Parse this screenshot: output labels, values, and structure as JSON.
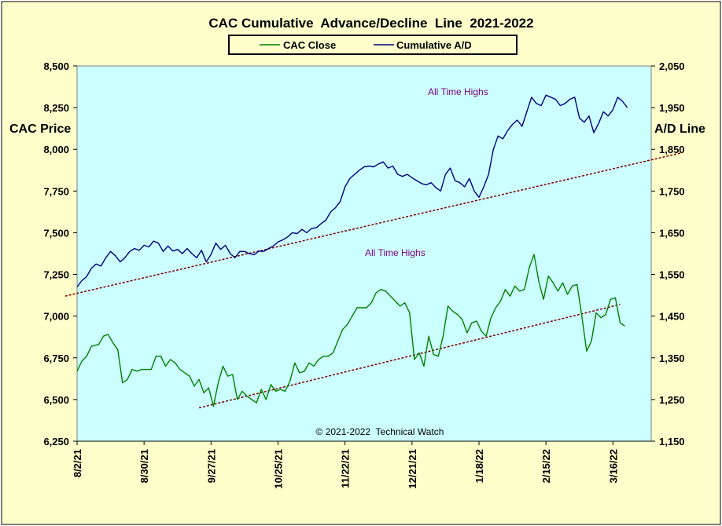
{
  "chart_data": {
    "type": "line",
    "title": "CAC Cumulative  Advance/Decline  Line  2021-2022",
    "ylabel_left": "CAC Price",
    "ylabel_right": "A/D Line",
    "credit": "© 2021-2022  Technical Watch",
    "annotations": [
      "All Time Highs",
      "All Time Highs"
    ],
    "legend_position": "top-center",
    "grid": false,
    "x_ticks": [
      "8/2/21",
      "8/30/21",
      "9/27/21",
      "10/25/21",
      "11/22/21",
      "12/21/21",
      "1/18/22",
      "2/15/22",
      "3/16/22"
    ],
    "y_left_ticks": [
      "6,250",
      "6,500",
      "6,750",
      "7,000",
      "7,250",
      "7,500",
      "7,750",
      "8,000",
      "8,250",
      "8,500"
    ],
    "y_right_ticks": [
      "1,150",
      "1,250",
      "1,350",
      "1,450",
      "1,550",
      "1,650",
      "1,750",
      "1,850",
      "1,950",
      "2,050"
    ],
    "ylim_left": [
      6250,
      8500
    ],
    "ylim_right": [
      1150,
      2050
    ],
    "x_range_days": [
      0,
      240
    ],
    "colors": {
      "cac": "#008000",
      "ad": "#000080",
      "trend": "#800000",
      "plot_bg": "#ccffff",
      "frame_bg": "#ffffcc"
    },
    "series": [
      {
        "name": "CAC Close",
        "axis": "left",
        "points": [
          [
            0,
            6670
          ],
          [
            2,
            6730
          ],
          [
            4,
            6760
          ],
          [
            6,
            6820
          ],
          [
            9,
            6830
          ],
          [
            11,
            6880
          ],
          [
            13,
            6890
          ],
          [
            15,
            6840
          ],
          [
            17,
            6800
          ],
          [
            19,
            6600
          ],
          [
            21,
            6620
          ],
          [
            23,
            6680
          ],
          [
            25,
            6670
          ],
          [
            27,
            6680
          ],
          [
            29,
            6680
          ],
          [
            31,
            6680
          ],
          [
            33,
            6760
          ],
          [
            35,
            6760
          ],
          [
            37,
            6700
          ],
          [
            39,
            6740
          ],
          [
            41,
            6720
          ],
          [
            43,
            6680
          ],
          [
            45,
            6660
          ],
          [
            47,
            6640
          ],
          [
            49,
            6580
          ],
          [
            51,
            6620
          ],
          [
            53,
            6540
          ],
          [
            55,
            6570
          ],
          [
            57,
            6460
          ],
          [
            59,
            6600
          ],
          [
            61,
            6700
          ],
          [
            63,
            6640
          ],
          [
            65,
            6650
          ],
          [
            67,
            6500
          ],
          [
            69,
            6550
          ],
          [
            71,
            6520
          ],
          [
            73,
            6500
          ],
          [
            75,
            6480
          ],
          [
            77,
            6560
          ],
          [
            79,
            6500
          ],
          [
            81,
            6590
          ],
          [
            83,
            6550
          ],
          [
            85,
            6560
          ],
          [
            87,
            6550
          ],
          [
            89,
            6610
          ],
          [
            91,
            6720
          ],
          [
            93,
            6660
          ],
          [
            95,
            6670
          ],
          [
            97,
            6720
          ],
          [
            99,
            6700
          ],
          [
            101,
            6740
          ],
          [
            103,
            6760
          ],
          [
            105,
            6760
          ],
          [
            107,
            6780
          ],
          [
            109,
            6850
          ],
          [
            111,
            6920
          ],
          [
            113,
            6950
          ],
          [
            115,
            7000
          ],
          [
            117,
            7050
          ],
          [
            119,
            7050
          ],
          [
            121,
            7050
          ],
          [
            123,
            7080
          ],
          [
            125,
            7140
          ],
          [
            127,
            7160
          ],
          [
            129,
            7150
          ],
          [
            131,
            7120
          ],
          [
            133,
            7090
          ],
          [
            135,
            7060
          ],
          [
            137,
            7080
          ],
          [
            139,
            7020
          ],
          [
            141,
            6740
          ],
          [
            143,
            6780
          ],
          [
            145,
            6700
          ],
          [
            147,
            6880
          ],
          [
            149,
            6770
          ],
          [
            151,
            6760
          ],
          [
            153,
            6880
          ],
          [
            155,
            7060
          ],
          [
            157,
            7030
          ],
          [
            159,
            7010
          ],
          [
            161,
            6980
          ],
          [
            163,
            6900
          ],
          [
            165,
            6960
          ],
          [
            167,
            6970
          ],
          [
            169,
            6910
          ],
          [
            171,
            6880
          ],
          [
            173,
            6990
          ],
          [
            175,
            7050
          ],
          [
            177,
            7090
          ],
          [
            179,
            7160
          ],
          [
            181,
            7120
          ],
          [
            183,
            7180
          ],
          [
            185,
            7150
          ],
          [
            187,
            7160
          ],
          [
            189,
            7290
          ],
          [
            191,
            7370
          ],
          [
            193,
            7210
          ],
          [
            195,
            7100
          ],
          [
            197,
            7240
          ],
          [
            199,
            7200
          ],
          [
            201,
            7150
          ],
          [
            203,
            7200
          ],
          [
            205,
            7130
          ],
          [
            207,
            7180
          ],
          [
            209,
            7190
          ],
          [
            211,
            7000
          ],
          [
            213,
            6790
          ],
          [
            215,
            6850
          ],
          [
            217,
            7020
          ],
          [
            219,
            6990
          ],
          [
            221,
            7010
          ],
          [
            223,
            7100
          ],
          [
            225,
            7110
          ],
          [
            227,
            6960
          ],
          [
            229,
            6940
          ]
        ]
      },
      {
        "name": "Cumulative A/D",
        "axis": "right",
        "points": [
          [
            0,
            1520
          ],
          [
            2,
            1535
          ],
          [
            4,
            1545
          ],
          [
            6,
            1565
          ],
          [
            8,
            1575
          ],
          [
            10,
            1570
          ],
          [
            12,
            1590
          ],
          [
            14,
            1605
          ],
          [
            16,
            1595
          ],
          [
            18,
            1580
          ],
          [
            20,
            1590
          ],
          [
            22,
            1605
          ],
          [
            24,
            1612
          ],
          [
            26,
            1608
          ],
          [
            28,
            1620
          ],
          [
            30,
            1616
          ],
          [
            32,
            1630
          ],
          [
            34,
            1625
          ],
          [
            36,
            1605
          ],
          [
            38,
            1618
          ],
          [
            40,
            1606
          ],
          [
            42,
            1610
          ],
          [
            44,
            1600
          ],
          [
            46,
            1612
          ],
          [
            48,
            1600
          ],
          [
            50,
            1590
          ],
          [
            52,
            1608
          ],
          [
            54,
            1580
          ],
          [
            56,
            1598
          ],
          [
            58,
            1625
          ],
          [
            60,
            1610
          ],
          [
            62,
            1620
          ],
          [
            64,
            1600
          ],
          [
            66,
            1590
          ],
          [
            68,
            1605
          ],
          [
            70,
            1605
          ],
          [
            72,
            1600
          ],
          [
            74,
            1597
          ],
          [
            76,
            1606
          ],
          [
            78,
            1605
          ],
          [
            80,
            1612
          ],
          [
            82,
            1618
          ],
          [
            84,
            1628
          ],
          [
            86,
            1633
          ],
          [
            88,
            1640
          ],
          [
            90,
            1650
          ],
          [
            92,
            1648
          ],
          [
            94,
            1658
          ],
          [
            96,
            1650
          ],
          [
            98,
            1660
          ],
          [
            100,
            1662
          ],
          [
            102,
            1672
          ],
          [
            104,
            1680
          ],
          [
            106,
            1700
          ],
          [
            108,
            1710
          ],
          [
            110,
            1725
          ],
          [
            112,
            1760
          ],
          [
            114,
            1780
          ],
          [
            116,
            1790
          ],
          [
            118,
            1800
          ],
          [
            120,
            1808
          ],
          [
            122,
            1810
          ],
          [
            124,
            1808
          ],
          [
            126,
            1815
          ],
          [
            128,
            1820
          ],
          [
            130,
            1805
          ],
          [
            132,
            1810
          ],
          [
            134,
            1790
          ],
          [
            136,
            1785
          ],
          [
            138,
            1790
          ],
          [
            140,
            1782
          ],
          [
            142,
            1775
          ],
          [
            144,
            1768
          ],
          [
            146,
            1765
          ],
          [
            148,
            1770
          ],
          [
            150,
            1758
          ],
          [
            152,
            1750
          ],
          [
            154,
            1790
          ],
          [
            156,
            1805
          ],
          [
            158,
            1775
          ],
          [
            160,
            1770
          ],
          [
            162,
            1760
          ],
          [
            164,
            1780
          ],
          [
            166,
            1750
          ],
          [
            168,
            1735
          ],
          [
            170,
            1760
          ],
          [
            172,
            1790
          ],
          [
            174,
            1850
          ],
          [
            176,
            1882
          ],
          [
            178,
            1875
          ],
          [
            180,
            1895
          ],
          [
            182,
            1910
          ],
          [
            184,
            1920
          ],
          [
            186,
            1905
          ],
          [
            188,
            1940
          ],
          [
            190,
            1975
          ],
          [
            192,
            1960
          ],
          [
            194,
            1955
          ],
          [
            196,
            1980
          ],
          [
            198,
            1975
          ],
          [
            200,
            1970
          ],
          [
            202,
            1955
          ],
          [
            204,
            1960
          ],
          [
            206,
            1970
          ],
          [
            208,
            1975
          ],
          [
            210,
            1925
          ],
          [
            212,
            1915
          ],
          [
            214,
            1930
          ],
          [
            216,
            1890
          ],
          [
            218,
            1912
          ],
          [
            220,
            1940
          ],
          [
            222,
            1930
          ],
          [
            224,
            1945
          ],
          [
            226,
            1975
          ],
          [
            228,
            1965
          ],
          [
            230,
            1950
          ]
        ]
      }
    ],
    "trendlines": [
      {
        "axis": "left",
        "from": [
          -5,
          7120
        ],
        "to": [
          253,
          7980
        ]
      },
      {
        "axis": "left",
        "from": [
          51,
          6450
        ],
        "to": [
          227,
          7070
        ]
      }
    ]
  },
  "legend": {
    "items": [
      "CAC Close",
      "Cumulative A/D"
    ]
  }
}
